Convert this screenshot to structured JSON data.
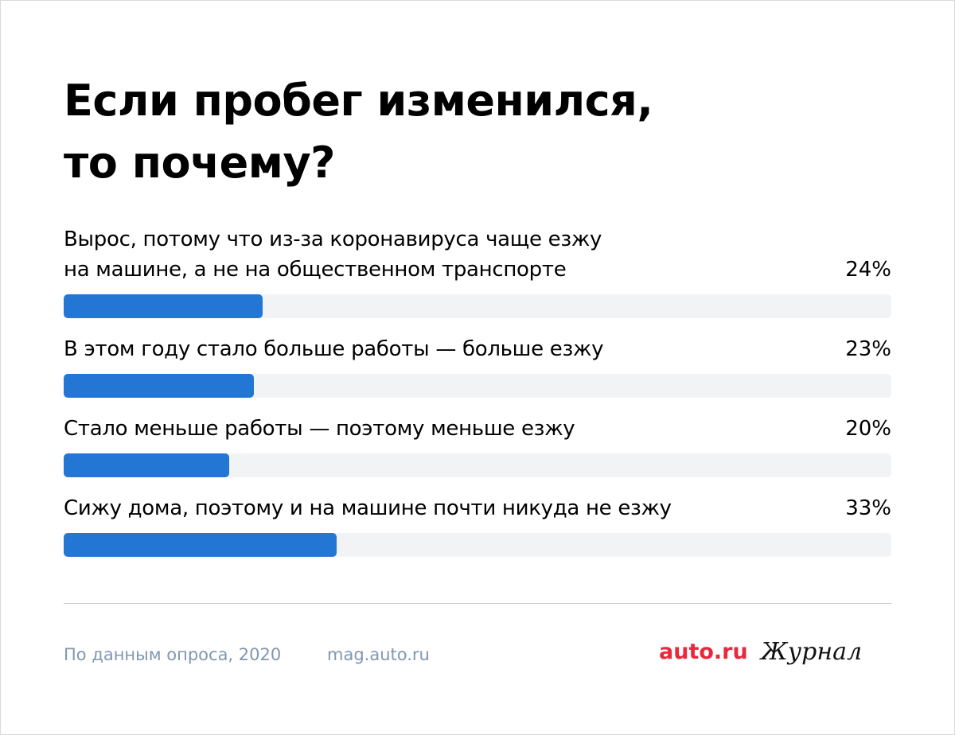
{
  "title": {
    "line1": "Если пробег изменился,",
    "line2": "то почему?"
  },
  "chart_data": {
    "type": "bar",
    "orientation": "horizontal",
    "title": "Если пробег изменился, то почему?",
    "value_suffix": "%",
    "xlim": [
      0,
      100
    ],
    "categories": [
      "Вырос, потому что из-за коронавируса чаще езжу на машине, а не на общественном транспорте",
      "В этом году стало больше работы — больше езжу",
      "Стало меньше работы — поэтому меньше езжу",
      "Сижу дома, поэтому и на машине почти никуда не езжу"
    ],
    "values": [
      24,
      23,
      20,
      33
    ],
    "value_labels": [
      "24%",
      "23%",
      "20%",
      "33%"
    ],
    "label_lines": [
      [
        "Вырос, потому что из-за коронавируса чаще езжу",
        "на машине, а не на общественном транспорте"
      ],
      [
        "В этом году стало больше работы — больше езжу"
      ],
      [
        "Стало меньше работы — поэтому меньше езжу"
      ],
      [
        "Сижу дома, поэтому и на машине почти никуда не езжу"
      ]
    ],
    "colors": {
      "bar": "#2476d4",
      "track": "#f2f3f5"
    }
  },
  "footer": {
    "source": "По данным опроса, 2020",
    "site": "mag.auto.ru",
    "brand": "auto.ru",
    "journal": "Журнал",
    "colors": {
      "muted": "#8197b0",
      "brand": "#e8283c"
    }
  }
}
